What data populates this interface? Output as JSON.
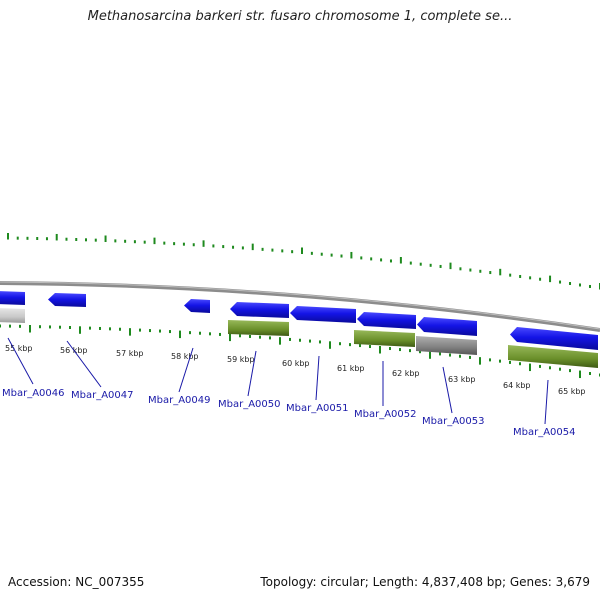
{
  "title": "Methanosarcina barkeri str. fusaro chromosome 1, complete se...",
  "footer": {
    "accession": "Accession: NC_007355",
    "summary": "Topology: circular; Length: 4,837,408 bp; Genes: 3,679"
  },
  "colors": {
    "gene_cds": "#1414e6",
    "gene_rna": "#6a8f2a",
    "gene_pseudo": "#8a8a8a",
    "gene_offscreen": "#c8c8c8",
    "ticks": "#1e8a1e",
    "label": "#1a1aa8",
    "backbone": "#8c8c8c"
  },
  "kbp_labels": [
    "55 kbp",
    "56 kbp",
    "57 kbp",
    "58 kbp",
    "59 kbp",
    "60 kbp",
    "61 kbp",
    "62 kbp",
    "63 kbp",
    "64 kbp",
    "65 kbp"
  ],
  "genes": [
    {
      "label": "Mbar_A0046",
      "type": "cds"
    },
    {
      "label": "Mbar_A0047",
      "type": "cds"
    },
    {
      "label": "Mbar_A0049",
      "type": "cds"
    },
    {
      "label": "Mbar_A0050",
      "type": "cds"
    },
    {
      "label": "Mbar_A0051",
      "type": "cds"
    },
    {
      "label": "Mbar_A0052",
      "type": "cds"
    },
    {
      "label": "Mbar_A0053",
      "type": "cds"
    },
    {
      "label": "Mbar_A0054",
      "type": "cds"
    }
  ]
}
